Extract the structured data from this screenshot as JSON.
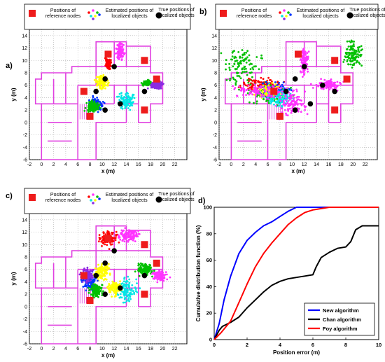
{
  "panel_labels": [
    "a)",
    "b)",
    "c)",
    "d)"
  ],
  "map_legend": {
    "reference": "Positions of reference nodes",
    "estimated": "Estimated positions of localized objects",
    "true": "True positions of localized objects"
  },
  "colors": {
    "reference": "#ee1c1c",
    "true": "#000000",
    "floor_plan": "#e040e0",
    "clusters": [
      "#ff0000",
      "#ff33ff",
      "#00c000",
      "#00e6e6",
      "#ffff00",
      "#0033ff",
      "#8a2be2"
    ]
  },
  "chart_data": [
    {
      "panel": "a)",
      "type": "scatter",
      "xlabel": "x (m)",
      "ylabel": "y (m)",
      "xlim": [
        -2,
        24
      ],
      "ylim": [
        -6,
        15
      ],
      "xticks": [
        -2,
        0,
        2,
        4,
        6,
        8,
        10,
        12,
        14,
        16,
        18,
        20,
        22
      ],
      "yticks": [
        -6,
        -4,
        -2,
        0,
        2,
        4,
        6,
        8,
        10,
        12,
        14
      ],
      "grid": true,
      "reference_nodes": [
        [
          11,
          11
        ],
        [
          17,
          10
        ],
        [
          19,
          7
        ],
        [
          7,
          5
        ],
        [
          17,
          2
        ],
        [
          8,
          1
        ]
      ],
      "true_positions": [
        [
          12,
          9
        ],
        [
          10.5,
          7
        ],
        [
          9,
          5
        ],
        [
          13,
          3
        ],
        [
          17,
          5
        ],
        [
          10.5,
          2
        ]
      ],
      "clusters": [
        {
          "color": "#ff33ff",
          "center": [
            13,
            11.5
          ],
          "spread": [
            0.6,
            1.2
          ]
        },
        {
          "color": "#ff0000",
          "center": [
            11,
            9.5
          ],
          "spread": [
            0.4,
            0.8
          ]
        },
        {
          "color": "#ffff00",
          "center": [
            10,
            6.5
          ],
          "spread": [
            1,
            1
          ]
        },
        {
          "color": "#00c000",
          "center": [
            17.5,
            6.3
          ],
          "spread": [
            0.7,
            0.4
          ]
        },
        {
          "color": "#00e6e6",
          "center": [
            14,
            3.5
          ],
          "spread": [
            1.3,
            1.3
          ]
        },
        {
          "color": "#8a2be2",
          "center": [
            19,
            6
          ],
          "spread": [
            1,
            0.6
          ]
        },
        {
          "color": "#0033ff",
          "center": [
            9,
            3
          ],
          "spread": [
            1,
            1
          ]
        },
        {
          "color": "#00c000",
          "center": [
            8.5,
            2.5
          ],
          "spread": [
            1,
            0.8
          ]
        }
      ]
    },
    {
      "panel": "b)",
      "type": "scatter",
      "xlabel": "x (m)",
      "ylabel": "y (m)",
      "xlim": [
        -2,
        24
      ],
      "ylim": [
        -6,
        15
      ],
      "xticks": [
        -2,
        0,
        2,
        4,
        6,
        8,
        10,
        12,
        14,
        16,
        18,
        20,
        22
      ],
      "yticks": [
        -6,
        -4,
        -2,
        0,
        2,
        4,
        6,
        8,
        10,
        12,
        14
      ],
      "grid": true,
      "reference_nodes": [
        [
          11,
          11
        ],
        [
          17,
          10
        ],
        [
          19,
          7
        ],
        [
          7,
          5
        ],
        [
          17,
          2
        ],
        [
          8,
          1
        ]
      ],
      "true_positions": [
        [
          12,
          9
        ],
        [
          10.5,
          7
        ],
        [
          9,
          5
        ],
        [
          13,
          3
        ],
        [
          17,
          5
        ],
        [
          10.5,
          2
        ],
        [
          15,
          6
        ]
      ],
      "clusters": [
        {
          "color": "#00c000",
          "center": [
            2,
            9
          ],
          "spread": [
            3,
            3
          ]
        },
        {
          "color": "#ff33ff",
          "center": [
            12,
            10
          ],
          "spread": [
            0.6,
            2
          ]
        },
        {
          "color": "#ff33ff",
          "center": [
            16,
            6
          ],
          "spread": [
            2,
            0.8
          ]
        },
        {
          "color": "#00c000",
          "center": [
            20,
            11
          ],
          "spread": [
            1.5,
            2
          ]
        },
        {
          "color": "#ff0000",
          "center": [
            5,
            6
          ],
          "spread": [
            3,
            1
          ]
        },
        {
          "color": "#00c000",
          "center": [
            6,
            4.5
          ],
          "spread": [
            3,
            1.5
          ]
        },
        {
          "color": "#0033ff",
          "center": [
            7,
            5
          ],
          "spread": [
            2.5,
            1.2
          ]
        },
        {
          "color": "#ffff00",
          "center": [
            6,
            5
          ],
          "spread": [
            2,
            1
          ]
        },
        {
          "color": "#00e6e6",
          "center": [
            8,
            4
          ],
          "spread": [
            2,
            1.5
          ]
        },
        {
          "color": "#ff33ff",
          "center": [
            10,
            3
          ],
          "spread": [
            2,
            2
          ]
        },
        {
          "color": "#ff33ff",
          "center": [
            5,
            5
          ],
          "spread": [
            4,
            1
          ]
        }
      ]
    },
    {
      "panel": "c)",
      "type": "scatter",
      "xlabel": "x (m)",
      "ylabel": "y (m)",
      "xlim": [
        -2,
        24
      ],
      "ylim": [
        -6,
        15
      ],
      "xticks": [
        -2,
        0,
        2,
        4,
        6,
        8,
        10,
        12,
        14,
        16,
        18,
        20,
        22
      ],
      "yticks": [
        -6,
        -4,
        -2,
        0,
        2,
        4,
        6,
        8,
        10,
        12,
        14
      ],
      "grid": true,
      "reference_nodes": [
        [
          11,
          11
        ],
        [
          17,
          10
        ],
        [
          19,
          7
        ],
        [
          7,
          5
        ],
        [
          17,
          2
        ],
        [
          8,
          1
        ]
      ],
      "true_positions": [
        [
          12,
          9
        ],
        [
          10.5,
          7
        ],
        [
          9,
          5
        ],
        [
          13,
          3
        ],
        [
          17,
          5
        ],
        [
          10.5,
          2
        ]
      ],
      "clusters": [
        {
          "color": "#ff0000",
          "center": [
            11,
            11
          ],
          "spread": [
            1.3,
            1.3
          ]
        },
        {
          "color": "#ff33ff",
          "center": [
            14.5,
            11.5
          ],
          "spread": [
            1.5,
            1
          ]
        },
        {
          "color": "#ffff00",
          "center": [
            10,
            5.5
          ],
          "spread": [
            1.2,
            1.2
          ]
        },
        {
          "color": "#00c000",
          "center": [
            17,
            6
          ],
          "spread": [
            1.2,
            1
          ]
        },
        {
          "color": "#ff33ff",
          "center": [
            19.5,
            5
          ],
          "spread": [
            1.2,
            0.8
          ]
        },
        {
          "color": "#00e6e6",
          "center": [
            14,
            2.5
          ],
          "spread": [
            1.5,
            1.8
          ]
        },
        {
          "color": "#0033ff",
          "center": [
            8,
            4
          ],
          "spread": [
            1.2,
            1.2
          ]
        },
        {
          "color": "#8a2be2",
          "center": [
            7.5,
            5
          ],
          "spread": [
            1,
            1
          ]
        },
        {
          "color": "#00c000",
          "center": [
            9,
            2.5
          ],
          "spread": [
            1,
            1
          ]
        },
        {
          "color": "#ffff00",
          "center": [
            12,
            3
          ],
          "spread": [
            1,
            1
          ]
        }
      ]
    },
    {
      "panel": "d)",
      "type": "line",
      "xlabel": "Position error (m)",
      "ylabel": "Cumulative distribution function (%)",
      "xlim": [
        0,
        10
      ],
      "ylim": [
        0,
        100
      ],
      "xticks": [
        0,
        2,
        4,
        6,
        8,
        10
      ],
      "yticks": [
        0,
        20,
        40,
        60,
        80,
        100
      ],
      "grid": false,
      "legend_position": "bottom-right",
      "series": [
        {
          "name": "New algorithm",
          "color": "#0000ff",
          "x": [
            0,
            0.3,
            0.6,
            1,
            1.5,
            2,
            2.5,
            3,
            3.5,
            4,
            4.5,
            5,
            5.5,
            10
          ],
          "y": [
            0,
            12,
            30,
            48,
            65,
            75,
            81,
            86,
            89,
            93,
            97,
            100,
            100,
            100
          ]
        },
        {
          "name": "Chan algorithm",
          "color": "#000000",
          "x": [
            0,
            0.3,
            0.5,
            1,
            1.5,
            2,
            2.5,
            3,
            3.5,
            4,
            4.5,
            5,
            5.5,
            6,
            6.2,
            6.5,
            7,
            7.5,
            8,
            8.3,
            8.6,
            9,
            9.5,
            10
          ],
          "y": [
            0,
            7,
            10,
            13,
            17,
            24,
            30,
            36,
            41,
            44,
            46,
            47,
            48,
            49,
            55,
            62,
            66,
            69,
            70,
            74,
            83,
            86,
            86,
            86
          ]
        },
        {
          "name": "Foy algorithm",
          "color": "#ff0000",
          "x": [
            0,
            0.4,
            1,
            1.5,
            2,
            2.5,
            3,
            3.5,
            4,
            4.5,
            5,
            5.5,
            6,
            6.5,
            7,
            10
          ],
          "y": [
            0,
            5,
            14,
            28,
            42,
            55,
            65,
            73,
            80,
            87,
            92,
            96,
            98,
            99,
            100,
            100
          ]
        }
      ]
    }
  ]
}
